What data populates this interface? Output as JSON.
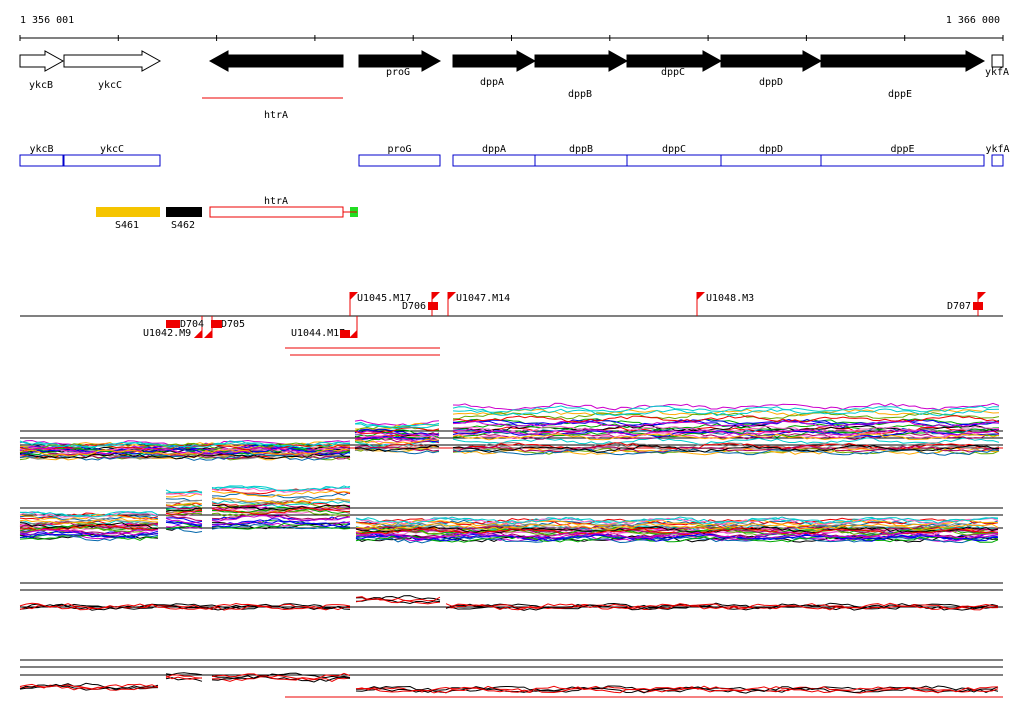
{
  "scale": {
    "start": "1 356 001",
    "end": "1 366 000"
  },
  "genes": [
    "ykcB",
    "ykcC",
    "htrA",
    "proG",
    "dppA",
    "dppB",
    "dppC",
    "dppD",
    "dppE",
    "ykfA"
  ],
  "gene_boxes": [
    "ykcB",
    "ykcC",
    "proG",
    "dppA",
    "dppB",
    "dppC",
    "dppD",
    "dppE",
    "ykfA"
  ],
  "features": [
    "S461",
    "S462",
    "htrA"
  ],
  "transcripts": [
    "U1042.M9",
    "D704",
    "D705",
    "U1044.M17",
    "U1045.M17",
    "D706",
    "U1047.M14",
    "U1048.M3",
    "D707"
  ]
}
